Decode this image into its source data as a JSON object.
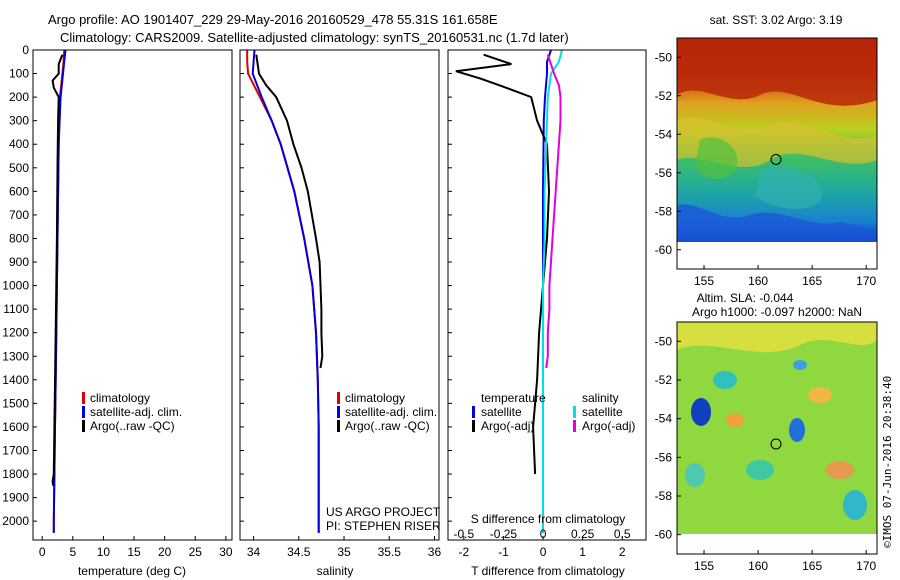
{
  "title_line1": "Argo profile: AO 1901407_229 29-May-2016 20160529_478 55.31S 161.658E",
  "title_line2": "Climatology: CARS2009. Satellite-adjusted climatology: synTS_20160531.nc (1.7d later)",
  "colors": {
    "climatology": "#e00000",
    "satellite": "#0000e0",
    "argo": "#000000",
    "satellite_salinity": "#00e0e0",
    "argo_salinity_adj": "#e000e0"
  },
  "chart_data": [
    {
      "type": "line",
      "name": "temperature-profile",
      "xlabel": "temperature (deg C)",
      "ylabel": "",
      "xlim": [
        -1.5,
        31
      ],
      "ylim": [
        2080,
        0
      ],
      "x_ticks": [
        0,
        5,
        10,
        15,
        20,
        25,
        30
      ],
      "y_ticks": [
        0,
        100,
        200,
        300,
        400,
        500,
        600,
        700,
        800,
        900,
        1000,
        1100,
        1200,
        1300,
        1400,
        1500,
        1600,
        1700,
        1800,
        1900,
        2000
      ],
      "legend": [
        "climatology",
        "satellite-adj. clim.",
        "Argo(..raw -QC)"
      ],
      "legend_position": "lower-center",
      "series": [
        {
          "name": "climatology",
          "color": "#e00000",
          "depth": [
            0,
            50,
            100,
            150,
            200,
            400,
            600,
            800,
            1000,
            1200,
            1400,
            1600,
            1800,
            2000,
            2050
          ],
          "values": [
            3.6,
            3.5,
            3.3,
            3.1,
            2.9,
            2.7,
            2.6,
            2.5,
            2.4,
            2.3,
            2.2,
            2.1,
            2.0,
            1.9,
            1.9
          ]
        },
        {
          "name": "satellite-adj. clim.",
          "color": "#0000e0",
          "depth": [
            0,
            50,
            100,
            150,
            200,
            400,
            600,
            800,
            1000,
            1200,
            1400,
            1600,
            1800,
            2000,
            2050
          ],
          "values": [
            3.8,
            3.6,
            3.4,
            3.2,
            3.0,
            2.7,
            2.6,
            2.5,
            2.4,
            2.3,
            2.2,
            2.1,
            2.0,
            1.9,
            1.9
          ]
        },
        {
          "name": "Argo(..raw -QC)",
          "color": "#000000",
          "depth": [
            20,
            60,
            100,
            130,
            160,
            200,
            300,
            500,
            800,
            1200,
            1600,
            1800,
            1830,
            1850
          ],
          "values": [
            3.3,
            2.7,
            2.7,
            1.7,
            1.9,
            2.7,
            2.6,
            2.5,
            2.4,
            2.2,
            2.0,
            1.9,
            1.7,
            1.8
          ]
        }
      ]
    },
    {
      "type": "line",
      "name": "salinity-profile",
      "xlabel": "salinity",
      "xlim": [
        33.85,
        36.05
      ],
      "ylim": [
        2080,
        0
      ],
      "x_ticks": [
        34,
        34.5,
        35,
        35.5,
        36
      ],
      "x_tick_labels": [
        "34",
        "34.5",
        "35",
        "35.5",
        "36"
      ],
      "legend": [
        "climatology",
        "satellite-adj. clim.",
        "Argo(..raw -QC)"
      ],
      "legend_position": "lower-right",
      "annotation": [
        "US ARGO PROJECT",
        "PI: STEPHEN RISER"
      ],
      "series": [
        {
          "name": "climatology",
          "color": "#e00000",
          "depth": [
            0,
            50,
            100,
            200,
            300,
            400,
            600,
            800,
            1000,
            1200,
            1400,
            1600,
            1800,
            2000,
            2050
          ],
          "values": [
            33.93,
            33.93,
            33.94,
            34.07,
            34.2,
            34.3,
            34.45,
            34.56,
            34.65,
            34.69,
            34.71,
            34.72,
            34.72,
            34.72,
            34.72
          ]
        },
        {
          "name": "satellite-adj. clim.",
          "color": "#0000e0",
          "depth": [
            0,
            50,
            100,
            200,
            300,
            400,
            600,
            800,
            1000,
            1200,
            1400,
            1600,
            1800,
            2000,
            2050
          ],
          "values": [
            34.01,
            34.0,
            33.99,
            34.09,
            34.2,
            34.3,
            34.45,
            34.56,
            34.65,
            34.69,
            34.71,
            34.72,
            34.72,
            34.72,
            34.72
          ]
        },
        {
          "name": "Argo(..raw -QC)",
          "color": "#000000",
          "depth": [
            20,
            100,
            150,
            200,
            300,
            400,
            500,
            600,
            800,
            900,
            1000,
            1100,
            1200,
            1300,
            1350
          ],
          "values": [
            34.03,
            34.06,
            34.14,
            34.25,
            34.37,
            34.44,
            34.53,
            34.6,
            34.69,
            34.73,
            34.74,
            34.75,
            34.75,
            34.76,
            34.74
          ]
        }
      ]
    },
    {
      "type": "line",
      "name": "difference-profile",
      "xlabel": "T difference from climatology",
      "x_top_label": "S difference from climatology",
      "xlim": [
        -2.4,
        2.6
      ],
      "ylim": [
        2080,
        0
      ],
      "x_ticks": [
        -2,
        -1,
        0,
        1,
        2
      ],
      "x_top_ticks": [
        -0.5,
        -0.25,
        0,
        0.25,
        0.5
      ],
      "x_top_tick_labels": [
        "-0.5",
        "-0.25",
        "0",
        "0.25",
        "0.5"
      ],
      "legend_temperature": [
        "temperature",
        "satellite",
        "Argo(-adj)"
      ],
      "legend_salinity": [
        "salinity",
        "satellite",
        "Argo(-adj)"
      ],
      "series": [
        {
          "name": "temperature satellite",
          "color": "#0000e0",
          "depth": [
            0,
            50,
            100,
            200,
            300,
            600,
            1000,
            1500,
            2050
          ],
          "values": [
            0.2,
            0.1,
            0.1,
            0.05,
            0.02,
            0.0,
            0.0,
            0.0,
            0.0
          ]
        },
        {
          "name": "temperature Argo(-adj)",
          "color": "#000000",
          "depth": [
            20,
            60,
            90,
            120,
            150,
            200,
            300,
            400,
            600,
            800,
            1000,
            1200,
            1400,
            1600,
            1800
          ],
          "values": [
            -1.5,
            -0.8,
            -2.2,
            -1.6,
            -1.1,
            -0.3,
            -0.15,
            0.1,
            0.15,
            0.1,
            0.0,
            -0.1,
            -0.15,
            -0.25,
            -0.2
          ]
        },
        {
          "name": "salinity satellite",
          "color": "#00e0e0",
          "depth": [
            0,
            50,
            100,
            200,
            400,
            600,
            800,
            1000,
            1500,
            2050
          ],
          "values": [
            0.12,
            0.1,
            0.05,
            0.03,
            0.02,
            0.01,
            0.01,
            0.0,
            0.0,
            0.0
          ]
        },
        {
          "name": "salinity Argo(-adj)",
          "color": "#e000e0",
          "depth": [
            20,
            100,
            150,
            200,
            300,
            400,
            500,
            600,
            700,
            800,
            900,
            1000,
            1100,
            1200,
            1300,
            1350
          ],
          "values": [
            0.03,
            0.07,
            0.1,
            0.11,
            0.11,
            0.1,
            0.09,
            0.08,
            0.07,
            0.06,
            0.05,
            0.04,
            0.04,
            0.03,
            0.03,
            0.02
          ]
        }
      ]
    },
    {
      "type": "heatmap",
      "name": "sst-map",
      "title": "sat. SST: 3.02  Argo: 3.19",
      "xlim": [
        152.5,
        171
      ],
      "ylim": [
        -61,
        -49
      ],
      "x_ticks": [
        155,
        160,
        165,
        170
      ],
      "y_ticks": [
        -60,
        -58,
        -56,
        -54,
        -52,
        -50
      ],
      "marker": {
        "lon": 161.658,
        "lat": -55.31
      }
    },
    {
      "type": "heatmap",
      "name": "sla-map",
      "title_lines": [
        "Altim. SLA: -0.044",
        "Argo h1000: -0.097  h2000: NaN"
      ],
      "xlim": [
        152.5,
        171
      ],
      "ylim": [
        -61,
        -49
      ],
      "x_ticks": [
        155,
        160,
        165,
        170
      ],
      "y_ticks": [
        -60,
        -58,
        -56,
        -54,
        -52,
        -50
      ],
      "marker": {
        "lon": 161.658,
        "lat": -55.31
      }
    }
  ],
  "watermark": "©IMOS 07-Jun-2016 20:38:40"
}
